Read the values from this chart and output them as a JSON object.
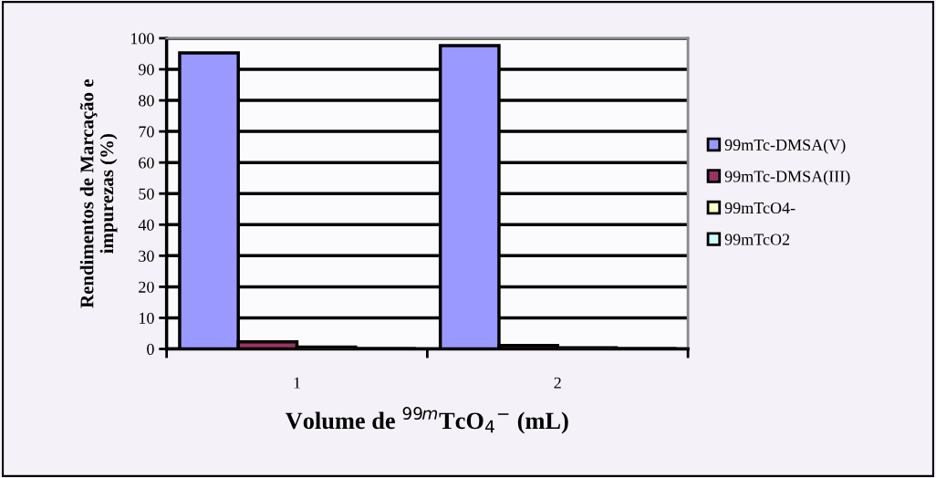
{
  "chart_data": {
    "type": "bar",
    "xlabel": "Volume de $^{99m}$TcO$_{4}$$^{−}$ (mL)",
    "ylabel": "Rendimentos de Marcação e\nimpurezas (%)",
    "categories": [
      "1",
      "2"
    ],
    "series": [
      {
        "name": "99mTc-DMSA(V)",
        "color": "#9999ff",
        "values": [
          95.3,
          97.6
        ]
      },
      {
        "name": "99mTc-DMSA(III)",
        "color": "#993366",
        "values": [
          2.3,
          1.1
        ]
      },
      {
        "name": "99mTcO4-",
        "color": "#ffffcc",
        "values": [
          0.6,
          0.4
        ]
      },
      {
        "name": "99mTcO2",
        "color": "#ccffff",
        "values": [
          0.1,
          0.1
        ]
      }
    ],
    "ylim": [
      0,
      100
    ],
    "yticks": [
      0,
      10,
      20,
      30,
      40,
      50,
      60,
      70,
      80,
      90,
      100
    ],
    "grid": "y",
    "legend": "right"
  }
}
